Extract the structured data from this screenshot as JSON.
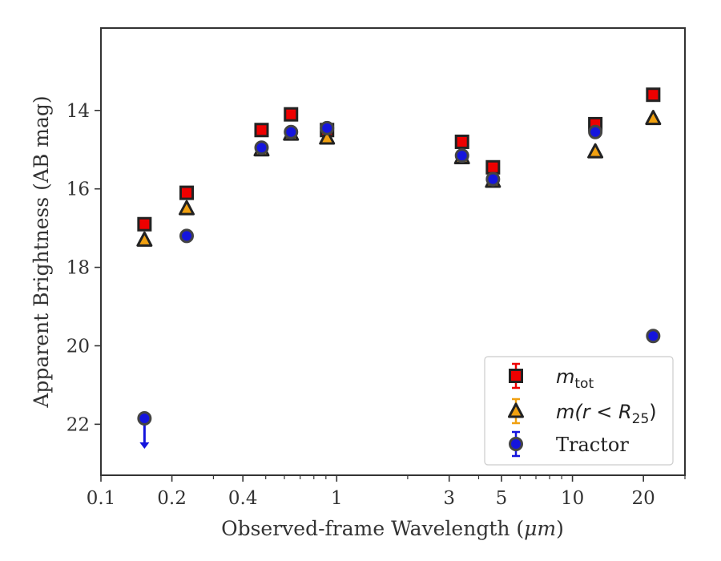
{
  "chart_data": {
    "type": "scatter",
    "xlabel_text": "Observed-frame Wavelength (",
    "xlabel_unit": "μm",
    "xlabel_close": ")",
    "ylabel": "Apparent Brightness (AB mag)",
    "x_scale": "log",
    "xlim": [
      0.1,
      30
    ],
    "ylim": [
      23.3,
      11.9
    ],
    "x_tick_labels": [
      "0.1",
      "0.2",
      "0.4",
      "1",
      "3",
      "5",
      "10",
      "20"
    ],
    "x_tick_values": [
      0.1,
      0.2,
      0.4,
      1,
      3,
      5,
      10,
      20
    ],
    "y_tick_values": [
      14,
      16,
      18,
      20,
      22
    ],
    "y_tick_labels": [
      "14",
      "16",
      "18",
      "20",
      "22"
    ],
    "grid": false,
    "legend_position": "lower-right",
    "colors": {
      "m_tot": "#ee0000",
      "m_r25": "#f0a010",
      "tractor": "#1515dd",
      "edge": "#222222",
      "axis": "#333333"
    },
    "series": [
      {
        "name_main": "m",
        "name_sub": "tot",
        "marker": "square",
        "x": [
          0.153,
          0.231,
          0.48,
          0.64,
          0.91,
          3.4,
          4.6,
          12.5,
          22.0
        ],
        "y": [
          16.9,
          16.1,
          14.5,
          14.1,
          14.5,
          14.8,
          15.45,
          14.35,
          13.6
        ]
      },
      {
        "name_main": "m(r < R",
        "name_sub": "25",
        "name_close": ")",
        "marker": "triangle",
        "x": [
          0.153,
          0.231,
          0.48,
          0.64,
          0.91,
          3.4,
          4.6,
          12.5,
          22.0
        ],
        "y": [
          17.3,
          16.5,
          15.0,
          14.6,
          14.7,
          15.2,
          15.8,
          15.05,
          14.2
        ]
      },
      {
        "name": "Tractor",
        "marker": "circle",
        "x": [
          0.153,
          0.231,
          0.48,
          0.64,
          0.91,
          3.4,
          4.6,
          12.5,
          22.0
        ],
        "y": [
          21.85,
          17.2,
          14.95,
          14.55,
          14.45,
          15.15,
          15.75,
          14.55,
          19.75
        ],
        "upper_limit": [
          true,
          false,
          false,
          false,
          false,
          false,
          false,
          false,
          false
        ]
      }
    ]
  }
}
